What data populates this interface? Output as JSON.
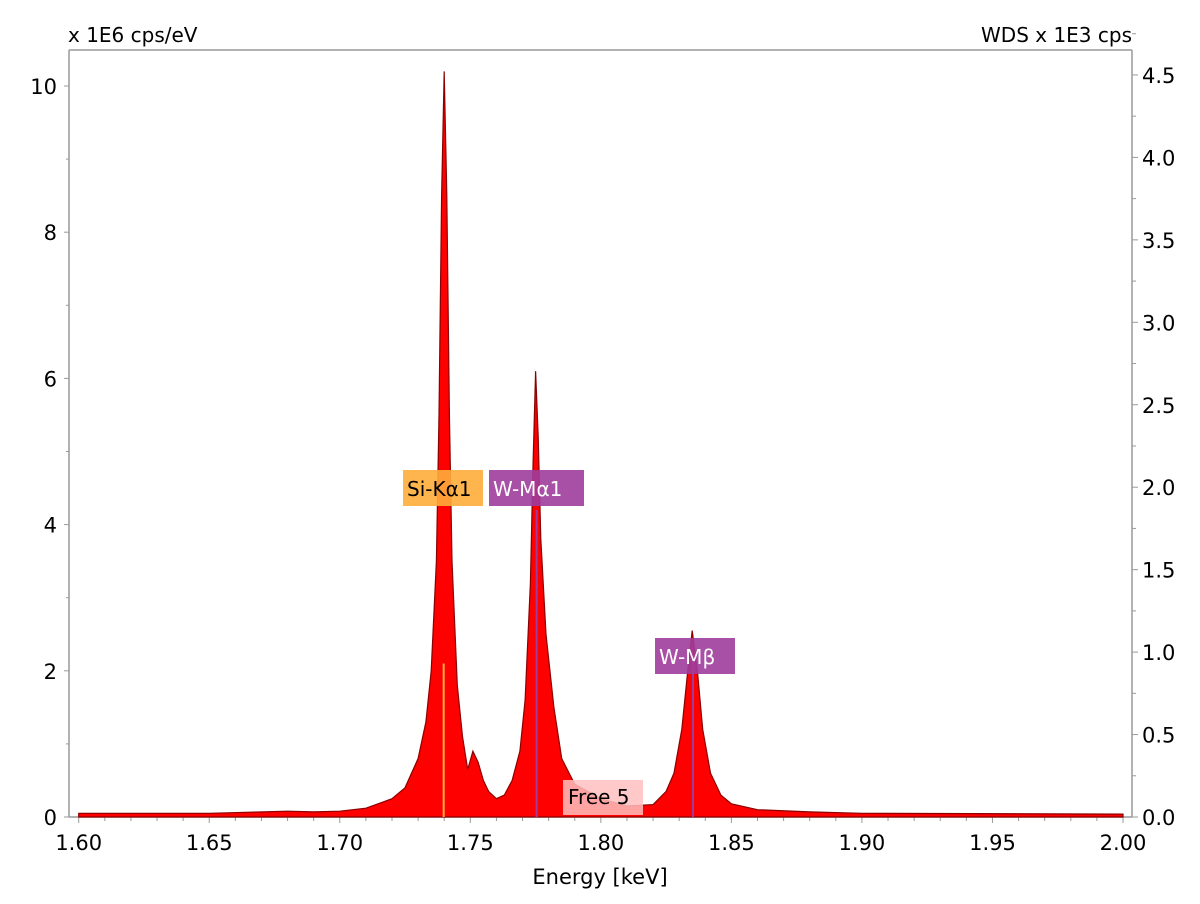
{
  "chart_data": {
    "type": "area",
    "xlabel": "Energy [keV]",
    "ylabel_left": "x 1E6 cps/eV",
    "ylabel_right": "WDS x 1E3 cps",
    "xlim": [
      1.6,
      2.0
    ],
    "ylim_left": [
      0,
      10.2
    ],
    "ylim_right": [
      0,
      4.6
    ],
    "x_ticks": [
      "1.60",
      "1.65",
      "1.70",
      "1.75",
      "1.80",
      "1.85",
      "1.90",
      "1.95",
      "2.00"
    ],
    "y_ticks_left": [
      "0",
      "2",
      "4",
      "6",
      "8",
      "10"
    ],
    "y_ticks_right": [
      "0.0",
      "0.5",
      "1.0",
      "1.5",
      "2.0",
      "2.5",
      "3.0",
      "3.5",
      "4.0",
      "4.5"
    ],
    "grid": false,
    "colors": {
      "fill": "#ff0000",
      "outline": "#8b0000",
      "si": "#ffad3b",
      "w": "#9e3c9c",
      "free": "#ffc0c0"
    },
    "series": [
      {
        "x": [
          1.6,
          1.65,
          1.68,
          1.69,
          1.7,
          1.71,
          1.72,
          1.725,
          1.73,
          1.733,
          1.735,
          1.737,
          1.738,
          1.739,
          1.74,
          1.741,
          1.742,
          1.743,
          1.745,
          1.747,
          1.749,
          1.751,
          1.753,
          1.755,
          1.757,
          1.76,
          1.763,
          1.766,
          1.769,
          1.771,
          1.773,
          1.774,
          1.775,
          1.776,
          1.777,
          1.779,
          1.782,
          1.785,
          1.79,
          1.8,
          1.81,
          1.82,
          1.825,
          1.828,
          1.831,
          1.833,
          1.835,
          1.837,
          1.839,
          1.842,
          1.846,
          1.85,
          1.86,
          1.88,
          1.9,
          2.0
        ],
        "y": [
          0.05,
          0.05,
          0.08,
          0.07,
          0.08,
          0.12,
          0.25,
          0.4,
          0.8,
          1.3,
          2.0,
          3.5,
          5.5,
          8.5,
          10.2,
          8.5,
          5.5,
          3.5,
          1.8,
          1.1,
          0.65,
          0.9,
          0.75,
          0.5,
          0.35,
          0.25,
          0.3,
          0.5,
          0.9,
          1.6,
          3.2,
          4.8,
          6.1,
          5.2,
          3.8,
          2.5,
          1.5,
          0.8,
          0.45,
          0.25,
          0.15,
          0.17,
          0.35,
          0.6,
          1.2,
          1.9,
          2.55,
          2.0,
          1.2,
          0.6,
          0.3,
          0.18,
          0.1,
          0.07,
          0.05,
          0.04
        ]
      }
    ],
    "annotations": [
      {
        "label": "Si-Kα1",
        "energy": 1.7398,
        "line_height": 2.1,
        "color": "#ffad3b",
        "text_color": "#000000"
      },
      {
        "label": "W-Mα1",
        "energy": 1.7754,
        "line_height": 4.2,
        "color": "#9e3c9c",
        "text_color": "#ffffff"
      },
      {
        "label": "W-Mβ",
        "energy": 1.8353,
        "line_height": 2.2,
        "color": "#9e3c9c",
        "text_color": "#ffffff"
      },
      {
        "label": "Free 5",
        "energy": 1.8,
        "line_height": 0,
        "color": "#ffc0c0",
        "text_color": "#000000"
      }
    ]
  }
}
